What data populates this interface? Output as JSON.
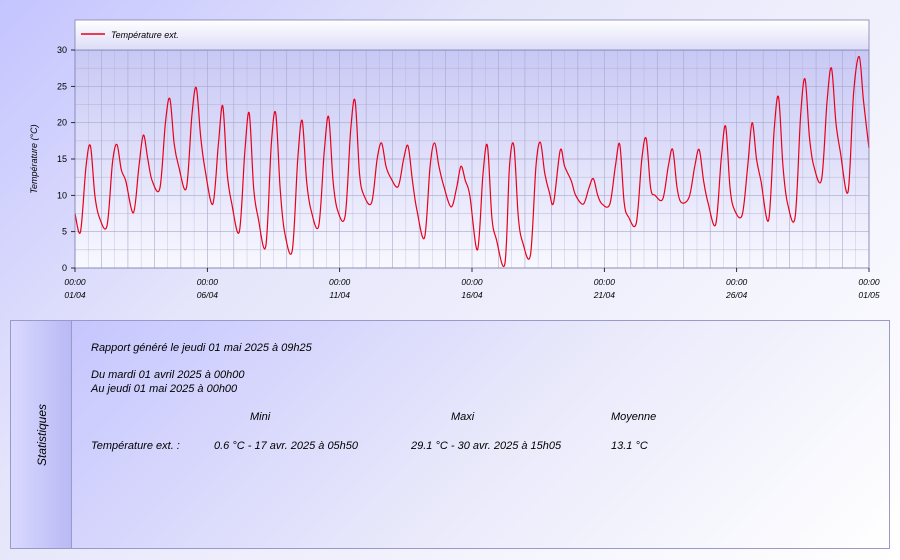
{
  "chart_data": {
    "type": "line",
    "title": "",
    "xlabel": "",
    "ylabel": "Température (°C)",
    "ylim": [
      0,
      30
    ],
    "y_ticks": [
      0,
      5,
      10,
      15,
      20,
      25,
      30
    ],
    "x_ticks": [
      {
        "time": "00:00",
        "date": "01/04"
      },
      {
        "time": "00:00",
        "date": "06/04"
      },
      {
        "time": "00:00",
        "date": "11/04"
      },
      {
        "time": "00:00",
        "date": "16/04"
      },
      {
        "time": "00:00",
        "date": "21/04"
      },
      {
        "time": "00:00",
        "date": "26/04"
      },
      {
        "time": "00:00",
        "date": "01/05"
      }
    ],
    "xlim": [
      "2025-04-01 00:00",
      "2025-05-01 00:00"
    ],
    "grid": true,
    "legend_placement": "top-left",
    "series": [
      {
        "name": "Température ext.",
        "color": "#e8001c",
        "points": [
          [
            "2025-04-01 00:00",
            7.5
          ],
          [
            "2025-04-01 05:00",
            5.0
          ],
          [
            "2025-04-01 10:00",
            14.0
          ],
          [
            "2025-04-01 14:00",
            16.8
          ],
          [
            "2025-04-01 18:00",
            10.0
          ],
          [
            "2025-04-01 22:00",
            7.0
          ],
          [
            "2025-04-02 05:00",
            5.8
          ],
          [
            "2025-04-02 10:00",
            14.5
          ],
          [
            "2025-04-02 14:00",
            17.0
          ],
          [
            "2025-04-02 18:00",
            13.5
          ],
          [
            "2025-04-02 22:00",
            12.0
          ],
          [
            "2025-04-03 05:00",
            7.6
          ],
          [
            "2025-04-03 10:00",
            14.0
          ],
          [
            "2025-04-03 14:00",
            18.3
          ],
          [
            "2025-04-03 18:00",
            15.0
          ],
          [
            "2025-04-03 22:00",
            12.0
          ],
          [
            "2025-04-04 05:00",
            11.0
          ],
          [
            "2025-04-04 10:00",
            20.0
          ],
          [
            "2025-04-04 14:00",
            23.3
          ],
          [
            "2025-04-04 18:00",
            17.0
          ],
          [
            "2025-04-04 22:00",
            14.0
          ],
          [
            "2025-04-05 05:00",
            11.0
          ],
          [
            "2025-04-05 10:00",
            21.0
          ],
          [
            "2025-04-05 14:00",
            24.8
          ],
          [
            "2025-04-05 18:00",
            18.0
          ],
          [
            "2025-04-05 22:00",
            13.5
          ],
          [
            "2025-04-06 05:00",
            8.8
          ],
          [
            "2025-04-06 10:00",
            17.0
          ],
          [
            "2025-04-06 14:00",
            22.3
          ],
          [
            "2025-04-06 18:00",
            13.0
          ],
          [
            "2025-04-06 22:00",
            9.0
          ],
          [
            "2025-04-07 05:00",
            5.0
          ],
          [
            "2025-04-07 10:00",
            16.0
          ],
          [
            "2025-04-07 14:00",
            21.3
          ],
          [
            "2025-04-07 18:00",
            11.0
          ],
          [
            "2025-04-07 22:00",
            7.0
          ],
          [
            "2025-04-08 05:00",
            3.0
          ],
          [
            "2025-04-08 10:00",
            17.0
          ],
          [
            "2025-04-08 14:00",
            21.3
          ],
          [
            "2025-04-08 18:00",
            11.0
          ],
          [
            "2025-04-08 22:00",
            5.0
          ],
          [
            "2025-04-09 05:00",
            2.4
          ],
          [
            "2025-04-09 10:00",
            15.0
          ],
          [
            "2025-04-09 14:00",
            20.3
          ],
          [
            "2025-04-09 18:00",
            12.0
          ],
          [
            "2025-04-09 22:00",
            8.0
          ],
          [
            "2025-04-10 05:00",
            5.8
          ],
          [
            "2025-04-10 10:00",
            16.0
          ],
          [
            "2025-04-10 14:00",
            20.8
          ],
          [
            "2025-04-10 18:00",
            12.0
          ],
          [
            "2025-04-10 22:00",
            8.0
          ],
          [
            "2025-04-11 05:00",
            7.2
          ],
          [
            "2025-04-11 10:00",
            19.0
          ],
          [
            "2025-04-11 14:00",
            23.0
          ],
          [
            "2025-04-11 18:00",
            13.0
          ],
          [
            "2025-04-11 22:00",
            10.0
          ],
          [
            "2025-04-12 05:00",
            9.0
          ],
          [
            "2025-04-12 10:00",
            15.0
          ],
          [
            "2025-04-12 14:00",
            17.2
          ],
          [
            "2025-04-12 18:00",
            14.0
          ],
          [
            "2025-04-12 22:00",
            12.5
          ],
          [
            "2025-04-13 05:00",
            11.2
          ],
          [
            "2025-04-13 10:00",
            15.0
          ],
          [
            "2025-04-13 14:00",
            16.8
          ],
          [
            "2025-04-13 18:00",
            12.0
          ],
          [
            "2025-04-13 22:00",
            8.0
          ],
          [
            "2025-04-14 05:00",
            4.2
          ],
          [
            "2025-04-14 10:00",
            14.0
          ],
          [
            "2025-04-14 14:00",
            17.2
          ],
          [
            "2025-04-14 18:00",
            14.0
          ],
          [
            "2025-04-14 22:00",
            11.5
          ],
          [
            "2025-04-15 05:00",
            8.4
          ],
          [
            "2025-04-15 10:00",
            11.0
          ],
          [
            "2025-04-15 14:00",
            14.0
          ],
          [
            "2025-04-15 18:00",
            12.0
          ],
          [
            "2025-04-15 22:00",
            10.0
          ],
          [
            "2025-04-16 05:00",
            2.5
          ],
          [
            "2025-04-16 10:00",
            13.0
          ],
          [
            "2025-04-16 14:00",
            16.8
          ],
          [
            "2025-04-16 18:00",
            7.0
          ],
          [
            "2025-04-16 22:00",
            4.0
          ],
          [
            "2025-04-17 05:50",
            0.6
          ],
          [
            "2025-04-17 10:00",
            14.0
          ],
          [
            "2025-04-17 14:00",
            16.8
          ],
          [
            "2025-04-17 18:00",
            7.0
          ],
          [
            "2025-04-17 22:00",
            3.5
          ],
          [
            "2025-04-18 05:00",
            1.8
          ],
          [
            "2025-04-18 10:00",
            14.0
          ],
          [
            "2025-04-18 14:00",
            17.3
          ],
          [
            "2025-04-18 18:00",
            13.0
          ],
          [
            "2025-04-18 22:00",
            10.5
          ],
          [
            "2025-04-19 02:00",
            9.0
          ],
          [
            "2025-04-19 08:00",
            16.2
          ],
          [
            "2025-04-19 12:00",
            14.0
          ],
          [
            "2025-04-19 18:00",
            12.0
          ],
          [
            "2025-04-19 22:00",
            10.0
          ],
          [
            "2025-04-20 05:00",
            8.8
          ],
          [
            "2025-04-20 10:00",
            11.0
          ],
          [
            "2025-04-20 14:00",
            12.3
          ],
          [
            "2025-04-20 18:00",
            10.0
          ],
          [
            "2025-04-20 22:00",
            8.8
          ],
          [
            "2025-04-21 05:00",
            8.8
          ],
          [
            "2025-04-21 10:00",
            14.0
          ],
          [
            "2025-04-21 14:00",
            17.0
          ],
          [
            "2025-04-21 18:00",
            9.0
          ],
          [
            "2025-04-21 22:00",
            7.0
          ],
          [
            "2025-04-22 05:00",
            6.2
          ],
          [
            "2025-04-22 10:00",
            15.0
          ],
          [
            "2025-04-22 14:00",
            17.8
          ],
          [
            "2025-04-22 18:00",
            11.0
          ],
          [
            "2025-04-22 22:00",
            10.0
          ],
          [
            "2025-04-23 05:00",
            9.5
          ],
          [
            "2025-04-23 10:00",
            14.0
          ],
          [
            "2025-04-23 14:00",
            16.3
          ],
          [
            "2025-04-23 18:00",
            11.0
          ],
          [
            "2025-04-23 22:00",
            9.0
          ],
          [
            "2025-04-24 05:00",
            9.8
          ],
          [
            "2025-04-24 10:00",
            14.0
          ],
          [
            "2025-04-24 14:00",
            16.3
          ],
          [
            "2025-04-24 18:00",
            12.0
          ],
          [
            "2025-04-24 22:00",
            9.0
          ],
          [
            "2025-04-25 05:00",
            6.0
          ],
          [
            "2025-04-25 10:00",
            15.0
          ],
          [
            "2025-04-25 14:00",
            19.5
          ],
          [
            "2025-04-25 18:00",
            11.0
          ],
          [
            "2025-04-25 22:00",
            8.0
          ],
          [
            "2025-04-26 05:00",
            7.3
          ],
          [
            "2025-04-26 10:00",
            14.0
          ],
          [
            "2025-04-26 14:00",
            20.0
          ],
          [
            "2025-04-26 18:00",
            15.0
          ],
          [
            "2025-04-26 22:00",
            12.0
          ],
          [
            "2025-04-27 05:00",
            6.6
          ],
          [
            "2025-04-27 10:00",
            19.0
          ],
          [
            "2025-04-27 14:00",
            23.5
          ],
          [
            "2025-04-27 18:00",
            14.0
          ],
          [
            "2025-04-27 22:00",
            9.0
          ],
          [
            "2025-04-28 05:00",
            7.0
          ],
          [
            "2025-04-28 10:00",
            21.0
          ],
          [
            "2025-04-28 14:00",
            26.0
          ],
          [
            "2025-04-28 18:00",
            18.0
          ],
          [
            "2025-04-28 22:00",
            14.0
          ],
          [
            "2025-04-29 05:00",
            12.2
          ],
          [
            "2025-04-29 10:00",
            23.0
          ],
          [
            "2025-04-29 14:00",
            27.5
          ],
          [
            "2025-04-29 18:00",
            20.0
          ],
          [
            "2025-04-29 22:00",
            16.0
          ],
          [
            "2025-04-30 05:00",
            10.5
          ],
          [
            "2025-04-30 10:00",
            24.0
          ],
          [
            "2025-04-30 15:05",
            29.1
          ],
          [
            "2025-04-30 19:00",
            23.0
          ],
          [
            "2025-04-30 23:59",
            16.5
          ]
        ]
      }
    ]
  },
  "stats": {
    "side_label": "Statistiques",
    "report_line": "Rapport généré le jeudi 01 mai 2025 à 09h25",
    "period_from": "Du mardi 01 avril 2025 à 00h00",
    "period_to": "Au jeudi 01 mai 2025 à 00h00",
    "col_min": "Mini",
    "col_max": "Maxi",
    "col_avg": "Moyenne",
    "row_label": "Température ext. :",
    "row_min": "0.6 °C - 17 avr. 2025 à 05h50",
    "row_max": "29.1 °C - 30 avr. 2025 à 15h05",
    "row_avg": "13.1 °C"
  },
  "colors": {
    "series": "#e8001c",
    "plot_top": "#c8c8f5",
    "plot_bottom": "#f8f8ff",
    "grid": "#a8a8cc"
  }
}
